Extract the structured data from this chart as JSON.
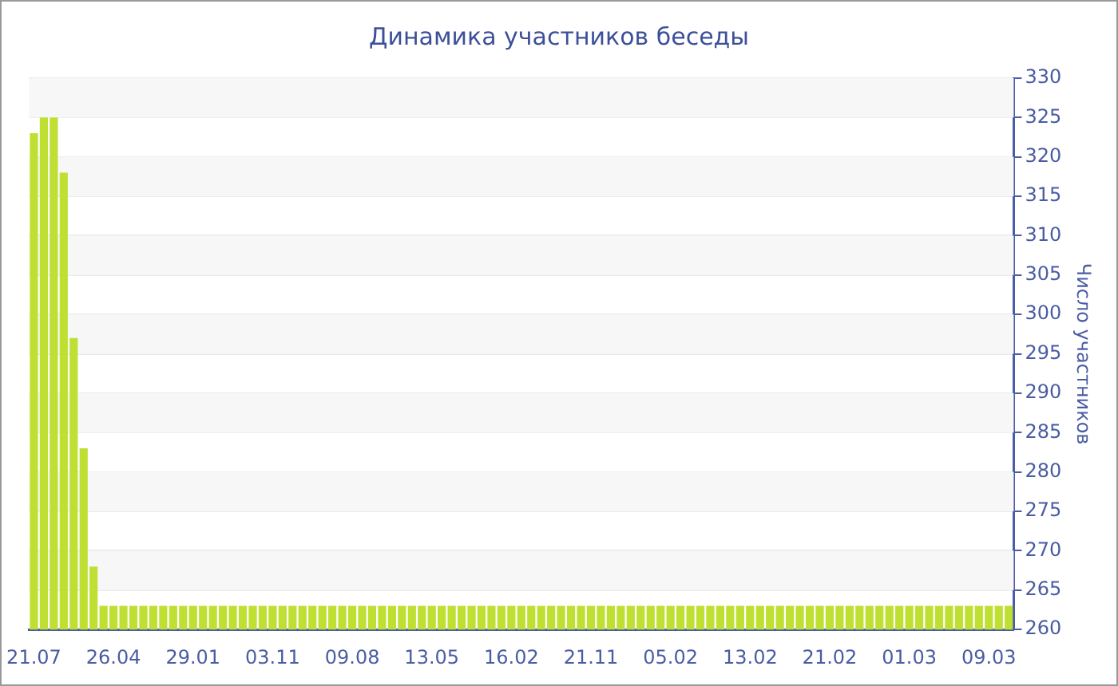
{
  "chart_data": {
    "type": "bar",
    "title": "Динамика участников беседы",
    "ylabel": "Число участников",
    "categories": [
      "21.07",
      null,
      null,
      null,
      null,
      null,
      null,
      null,
      "26.04",
      null,
      null,
      null,
      null,
      null,
      null,
      null,
      "29.01",
      null,
      null,
      null,
      null,
      null,
      null,
      null,
      "03.11",
      null,
      null,
      null,
      null,
      null,
      null,
      null,
      "09.08",
      null,
      null,
      null,
      null,
      null,
      null,
      null,
      "13.05",
      null,
      null,
      null,
      null,
      null,
      null,
      null,
      "16.02",
      null,
      null,
      null,
      null,
      null,
      null,
      null,
      "21.11",
      null,
      null,
      null,
      null,
      null,
      null,
      null,
      "05.02",
      null,
      null,
      null,
      null,
      null,
      null,
      null,
      "13.02",
      null,
      null,
      null,
      null,
      null,
      null,
      null,
      "21.02",
      null,
      null,
      null,
      null,
      null,
      null,
      null,
      "01.03",
      null,
      null,
      null,
      null,
      null,
      null,
      null,
      "09.03",
      null,
      null
    ],
    "values": [
      323,
      325,
      325,
      318,
      297,
      283,
      268,
      263,
      263,
      263,
      263,
      263,
      263,
      263,
      263,
      263,
      263,
      263,
      263,
      263,
      263,
      263,
      263,
      263,
      263,
      263,
      263,
      263,
      263,
      263,
      263,
      263,
      263,
      263,
      263,
      263,
      263,
      263,
      263,
      263,
      263,
      263,
      263,
      263,
      263,
      263,
      263,
      263,
      263,
      263,
      263,
      263,
      263,
      263,
      263,
      263,
      263,
      263,
      263,
      263,
      263,
      263,
      263,
      263,
      263,
      263,
      263,
      263,
      263,
      263,
      263,
      263,
      263,
      263,
      263,
      263,
      263,
      263,
      263,
      263,
      263,
      263,
      263,
      263,
      263,
      263,
      263,
      263,
      263,
      263,
      263,
      263,
      263,
      263,
      263,
      263,
      263,
      263,
      263
    ],
    "color": "#bfe033",
    "ylim": [
      260,
      330
    ],
    "yticks": [
      260,
      265,
      270,
      275,
      280,
      285,
      290,
      295,
      300,
      305,
      310,
      315,
      320,
      325,
      330
    ],
    "grid": "y",
    "legend": false
  }
}
